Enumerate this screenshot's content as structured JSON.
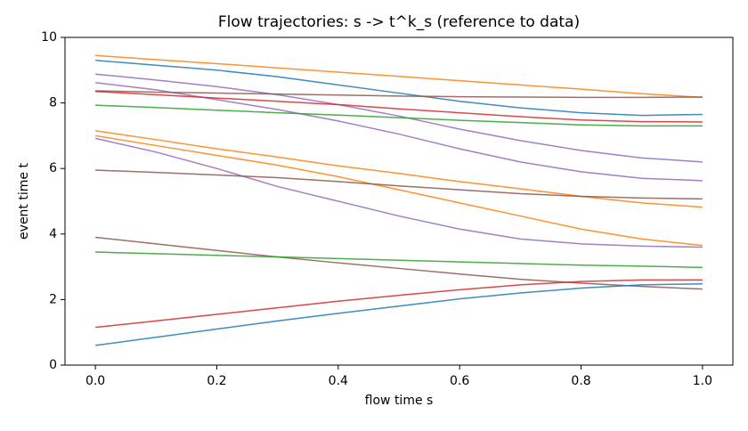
{
  "chart_data": {
    "type": "line",
    "title": "Flow trajectories: s -> t^k_s (reference to data)",
    "x_label": "flow time s",
    "y_label": "event time t",
    "x": [
      0,
      0.1,
      0.2,
      0.3,
      0.4,
      0.5,
      0.6,
      0.7,
      0.8,
      0.9,
      1.0
    ],
    "series": [
      {
        "color": "#1f77b4",
        "values": [
          9.3,
          9.15,
          9.0,
          8.8,
          8.55,
          8.3,
          8.05,
          7.85,
          7.7,
          7.62,
          7.65
        ]
      },
      {
        "color": "#ff7f0e",
        "values": [
          9.45,
          9.32,
          9.2,
          9.07,
          8.94,
          8.81,
          8.68,
          8.55,
          8.42,
          8.28,
          8.17
        ]
      },
      {
        "color": "#9467bd",
        "values": [
          8.88,
          8.7,
          8.5,
          8.25,
          7.95,
          7.6,
          7.2,
          6.85,
          6.55,
          6.32,
          6.2
        ]
      },
      {
        "color": "#9467bd",
        "values": [
          8.62,
          8.4,
          8.1,
          7.8,
          7.45,
          7.05,
          6.6,
          6.2,
          5.9,
          5.7,
          5.63
        ]
      },
      {
        "color": "#8c564b",
        "values": [
          8.37,
          8.33,
          8.3,
          8.27,
          8.24,
          8.21,
          8.19,
          8.18,
          8.17,
          8.17,
          8.18
        ]
      },
      {
        "color": "#d62728",
        "values": [
          8.35,
          8.25,
          8.15,
          8.05,
          7.95,
          7.82,
          7.7,
          7.58,
          7.48,
          7.43,
          7.42
        ]
      },
      {
        "color": "#2ca02c",
        "values": [
          7.93,
          7.86,
          7.78,
          7.7,
          7.63,
          7.55,
          7.47,
          7.4,
          7.33,
          7.3,
          7.3
        ]
      },
      {
        "color": "#ff7f0e",
        "values": [
          7.15,
          6.88,
          6.6,
          6.35,
          6.08,
          5.85,
          5.6,
          5.38,
          5.15,
          4.95,
          4.82
        ]
      },
      {
        "color": "#ff7f0e",
        "values": [
          7.0,
          6.7,
          6.4,
          6.1,
          5.75,
          5.35,
          4.95,
          4.55,
          4.15,
          3.85,
          3.65
        ]
      },
      {
        "color": "#9467bd",
        "values": [
          6.92,
          6.5,
          6.0,
          5.45,
          5.0,
          4.55,
          4.15,
          3.85,
          3.7,
          3.63,
          3.6
        ]
      },
      {
        "color": "#8c564b",
        "values": [
          5.95,
          5.88,
          5.8,
          5.72,
          5.6,
          5.47,
          5.35,
          5.23,
          5.15,
          5.1,
          5.07
        ]
      },
      {
        "color": "#8c564b",
        "values": [
          3.9,
          3.7,
          3.5,
          3.3,
          3.12,
          2.95,
          2.78,
          2.62,
          2.5,
          2.4,
          2.32
        ]
      },
      {
        "color": "#2ca02c",
        "values": [
          3.45,
          3.4,
          3.35,
          3.3,
          3.25,
          3.2,
          3.15,
          3.1,
          3.05,
          3.02,
          2.98
        ]
      },
      {
        "color": "#d62728",
        "values": [
          1.15,
          1.35,
          1.55,
          1.75,
          1.95,
          2.13,
          2.3,
          2.45,
          2.55,
          2.6,
          2.6
        ]
      },
      {
        "color": "#1f77b4",
        "values": [
          0.6,
          0.85,
          1.1,
          1.35,
          1.58,
          1.8,
          2.02,
          2.2,
          2.35,
          2.45,
          2.48
        ]
      }
    ],
    "xlim": [
      -0.05,
      1.05
    ],
    "xticks": [
      {
        "value": 0,
        "label": "0.0"
      },
      {
        "value": 0.2,
        "label": "0.2"
      },
      {
        "value": 0.4,
        "label": "0.4"
      },
      {
        "value": 0.6,
        "label": "0.6"
      },
      {
        "value": 0.8,
        "label": "0.8"
      },
      {
        "value": 1.0,
        "label": "1.0"
      }
    ],
    "ylim": [
      0,
      10
    ],
    "yticks": [
      0,
      2,
      4,
      6,
      8,
      10
    ],
    "grid": false
  }
}
